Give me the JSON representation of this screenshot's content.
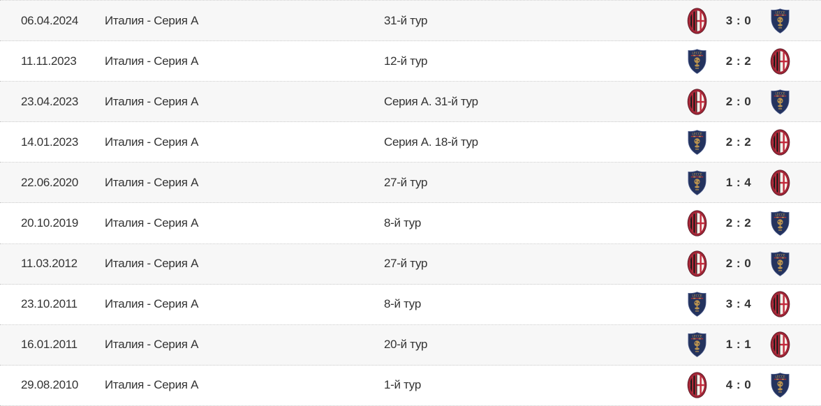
{
  "table": {
    "rows": [
      {
        "date": "06.04.2024",
        "tournament": "Италия - Серия А",
        "round": "31-й тур",
        "home_badge": "acmilan",
        "away_badge": "lecce",
        "score": "3 : 0"
      },
      {
        "date": "11.11.2023",
        "tournament": "Италия - Серия А",
        "round": "12-й тур",
        "home_badge": "lecce",
        "away_badge": "acmilan",
        "score": "2 : 2"
      },
      {
        "date": "23.04.2023",
        "tournament": "Италия - Серия А",
        "round": "Серия А. 31-й тур",
        "home_badge": "acmilan",
        "away_badge": "lecce",
        "score": "2 : 0"
      },
      {
        "date": "14.01.2023",
        "tournament": "Италия - Серия А",
        "round": "Серия А. 18-й тур",
        "home_badge": "lecce",
        "away_badge": "acmilan",
        "score": "2 : 2"
      },
      {
        "date": "22.06.2020",
        "tournament": "Италия - Серия А",
        "round": "27-й тур",
        "home_badge": "lecce",
        "away_badge": "acmilan",
        "score": "1 : 4"
      },
      {
        "date": "20.10.2019",
        "tournament": "Италия - Серия А",
        "round": "8-й тур",
        "home_badge": "acmilan",
        "away_badge": "lecce",
        "score": "2 : 2"
      },
      {
        "date": "11.03.2012",
        "tournament": "Италия - Серия А",
        "round": "27-й тур",
        "home_badge": "acmilan",
        "away_badge": "lecce",
        "score": "2 : 0"
      },
      {
        "date": "23.10.2011",
        "tournament": "Италия - Серия А",
        "round": "8-й тур",
        "home_badge": "lecce",
        "away_badge": "acmilan",
        "score": "3 : 4"
      },
      {
        "date": "16.01.2011",
        "tournament": "Италия - Серия А",
        "round": "20-й тур",
        "home_badge": "lecce",
        "away_badge": "acmilan",
        "score": "1 : 1"
      },
      {
        "date": "29.08.2010",
        "tournament": "Италия - Серия А",
        "round": "1-й тур",
        "home_badge": "acmilan",
        "away_badge": "lecce",
        "score": "4 : 0"
      }
    ]
  },
  "icons": {
    "acmilan": "acmilan-badge",
    "lecce": "lecce-badge"
  },
  "colors": {
    "row_alt_bg": "#f7f7f7",
    "separator": "#c9c9c9",
    "text": "#333333",
    "score_text": "#333333",
    "milan_ring_red": "#a12435",
    "milan_stripe_red": "#c3293b",
    "milan_stripe_black": "#1a1a1a",
    "lecce_navy": "#24335e",
    "lecce_gold": "#c0954e",
    "lecce_stripe_red": "#a83338"
  }
}
